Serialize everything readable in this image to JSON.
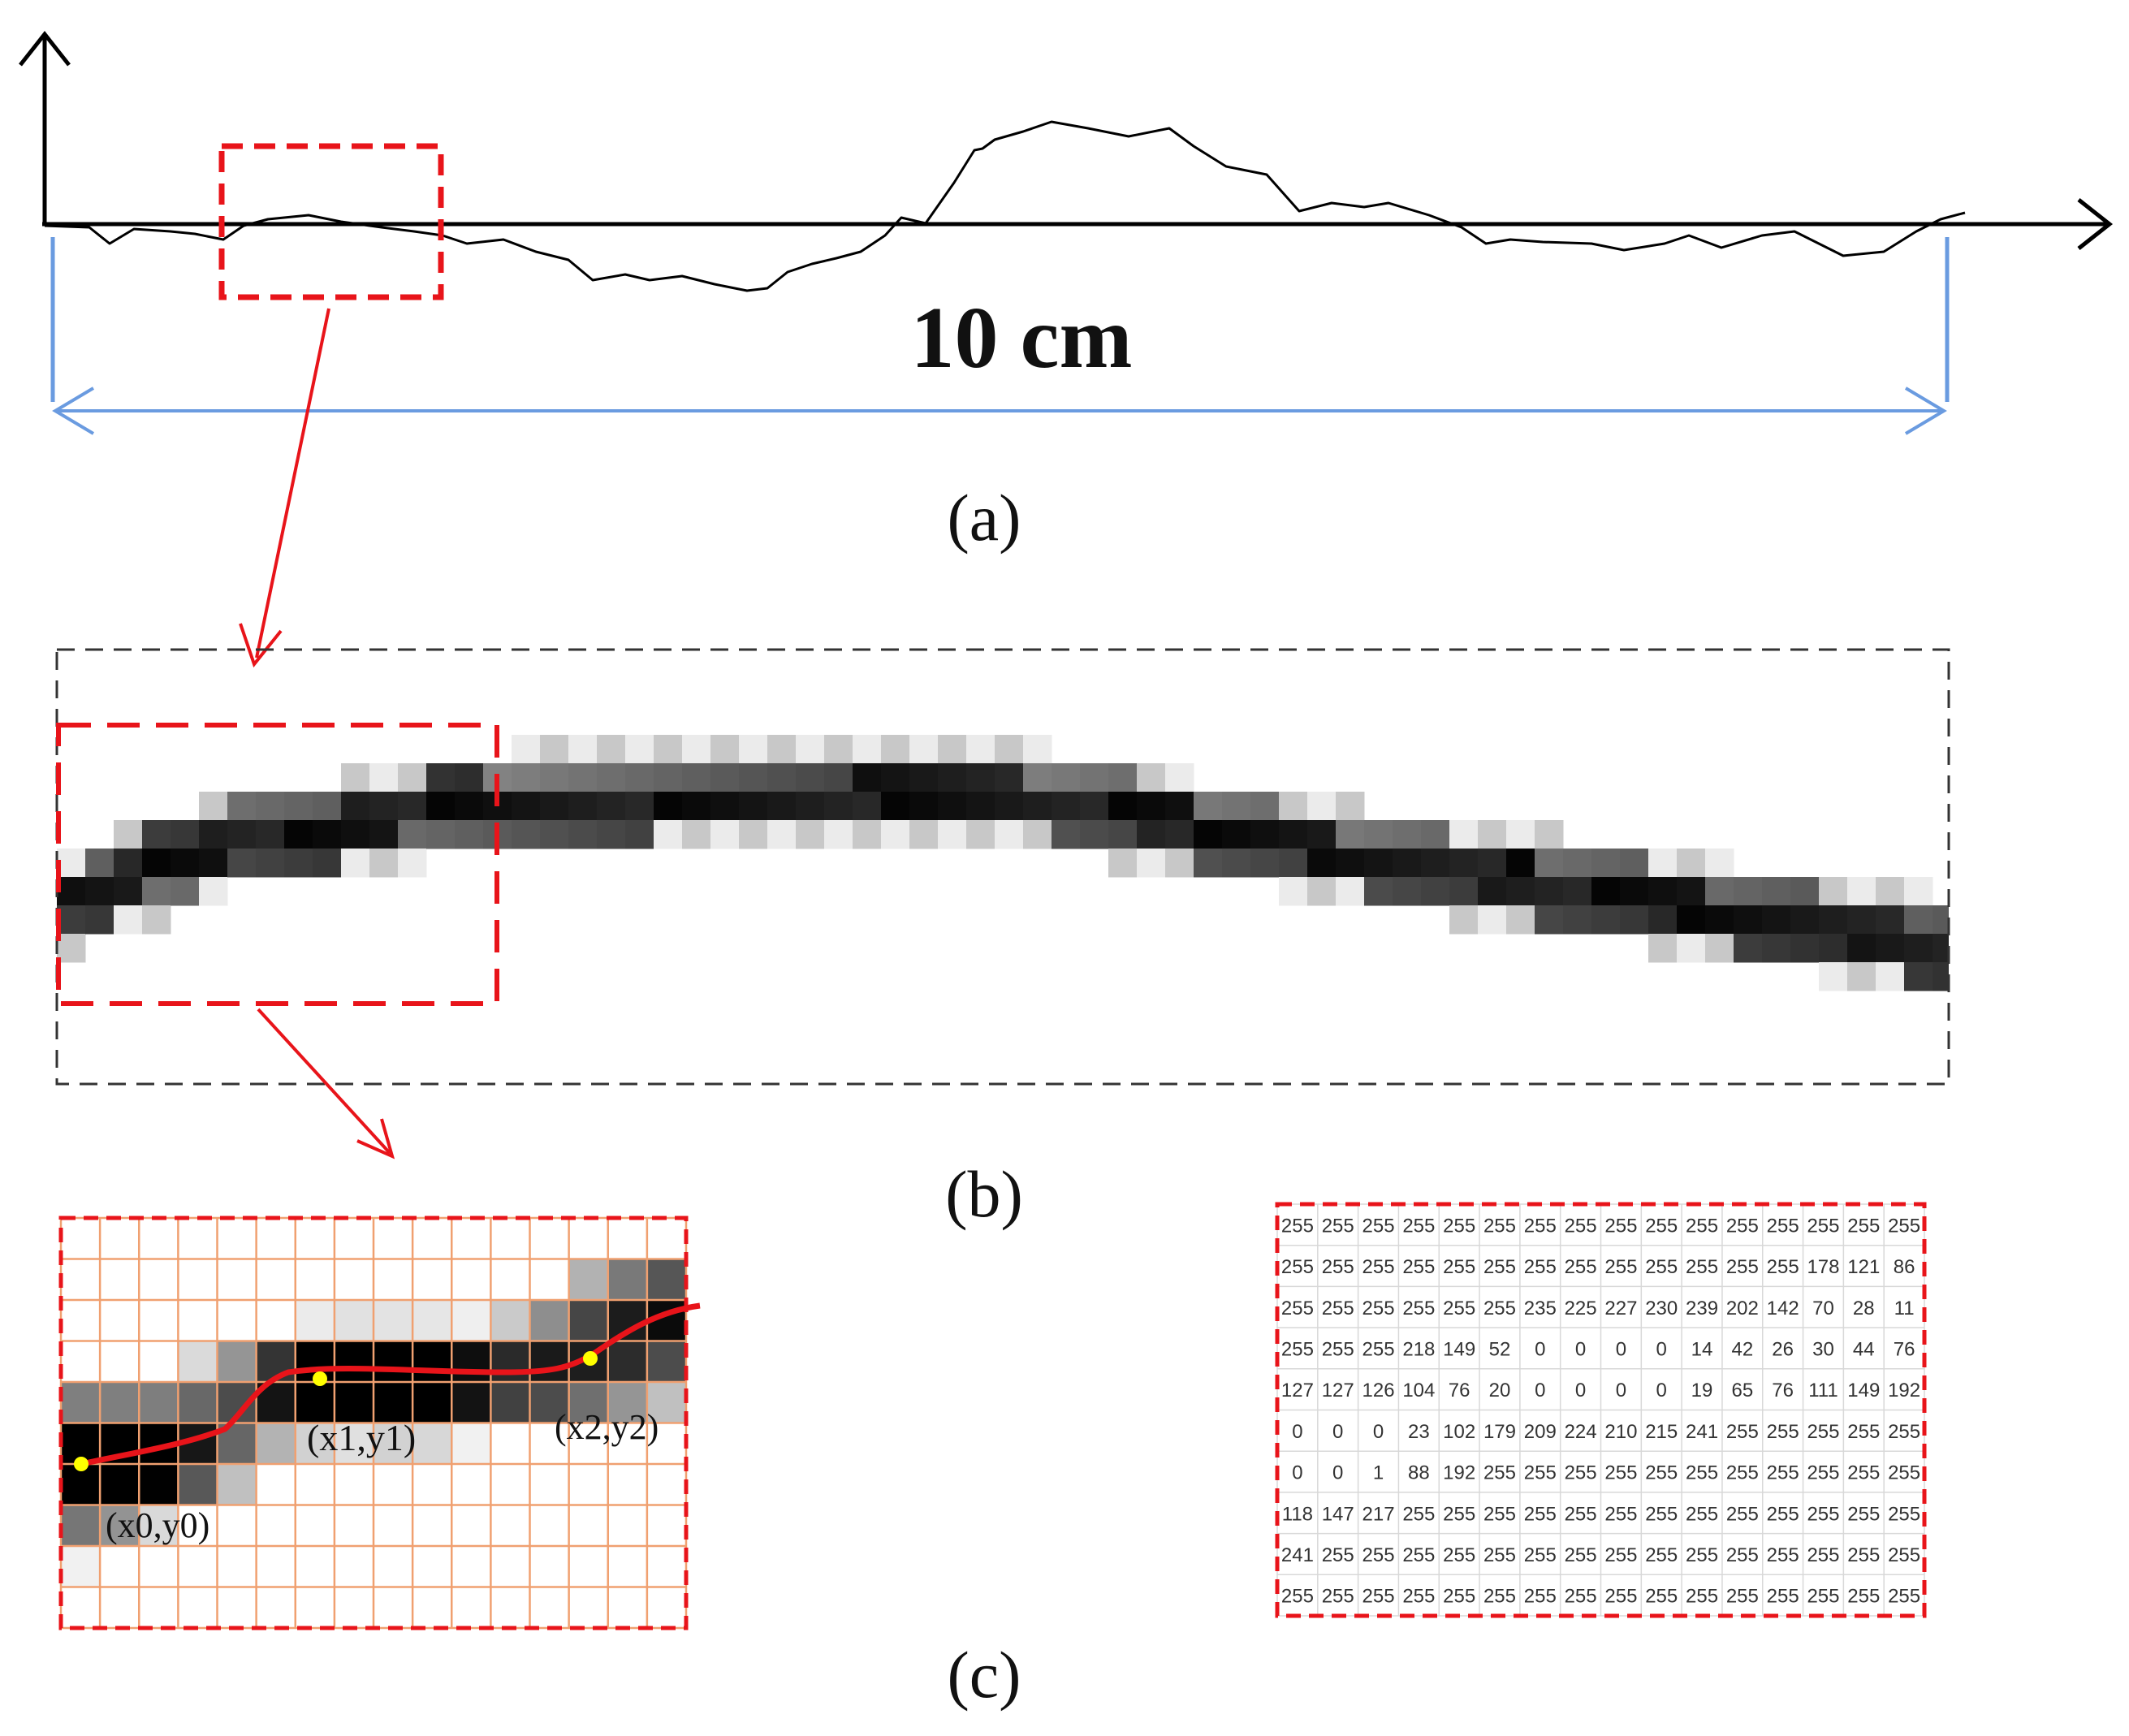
{
  "panel_a": {
    "scale_label": "10 cm",
    "caption": "(a)",
    "profile_line_color": "#000000",
    "scale_color": "#6a9be0",
    "highlight_color": "#e8141a"
  },
  "panel_b": {
    "caption": "(b)"
  },
  "panel_c": {
    "caption": "(c)",
    "grid_line_color": "#f0a070",
    "fit_curve_color": "#e8141a",
    "marker_color": "#ffff00",
    "points": [
      {
        "label": "(x0,y0)"
      },
      {
        "label": "(x1,y1)"
      },
      {
        "label": "(x2,y2)"
      }
    ]
  },
  "pixel_matrix": {
    "rows": [
      [
        "255",
        "255",
        "255",
        "255",
        "255",
        "255",
        "255",
        "255",
        "255",
        "255",
        "255",
        "255",
        "255",
        "255",
        "255",
        "255"
      ],
      [
        "255",
        "255",
        "255",
        "255",
        "255",
        "255",
        "255",
        "255",
        "255",
        "255",
        "255",
        "255",
        "255",
        "178",
        "121",
        "86"
      ],
      [
        "255",
        "255",
        "255",
        "255",
        "255",
        "255",
        "235",
        "225",
        "227",
        "230",
        "239",
        "202",
        "142",
        "70",
        "28",
        "11"
      ],
      [
        "255",
        "255",
        "255",
        "218",
        "149",
        "52",
        "0",
        "0",
        "0",
        "0",
        "14",
        "42",
        "26",
        "30",
        "44",
        "76"
      ],
      [
        "127",
        "127",
        "126",
        "104",
        "76",
        "20",
        "0",
        "0",
        "0",
        "0",
        "19",
        "65",
        "76",
        "111",
        "149",
        "192"
      ],
      [
        "0",
        "0",
        "0",
        "23",
        "102",
        "179",
        "209",
        "224",
        "210",
        "215",
        "241",
        "255",
        "255",
        "255",
        "255",
        "255"
      ],
      [
        "0",
        "0",
        "1",
        "88",
        "192",
        "255",
        "255",
        "255",
        "255",
        "255",
        "255",
        "255",
        "255",
        "255",
        "255",
        "255"
      ],
      [
        "118",
        "147",
        "217",
        "255",
        "255",
        "255",
        "255",
        "255",
        "255",
        "255",
        "255",
        "255",
        "255",
        "255",
        "255",
        "255"
      ],
      [
        "241",
        "255",
        "255",
        "255",
        "255",
        "255",
        "255",
        "255",
        "255",
        "255",
        "255",
        "255",
        "255",
        "255",
        "255",
        "255"
      ],
      [
        "255",
        "255",
        "255",
        "255",
        "255",
        "255",
        "255",
        "255",
        "255",
        "255",
        "255",
        "255",
        "255",
        "255",
        "255",
        "255"
      ]
    ]
  }
}
